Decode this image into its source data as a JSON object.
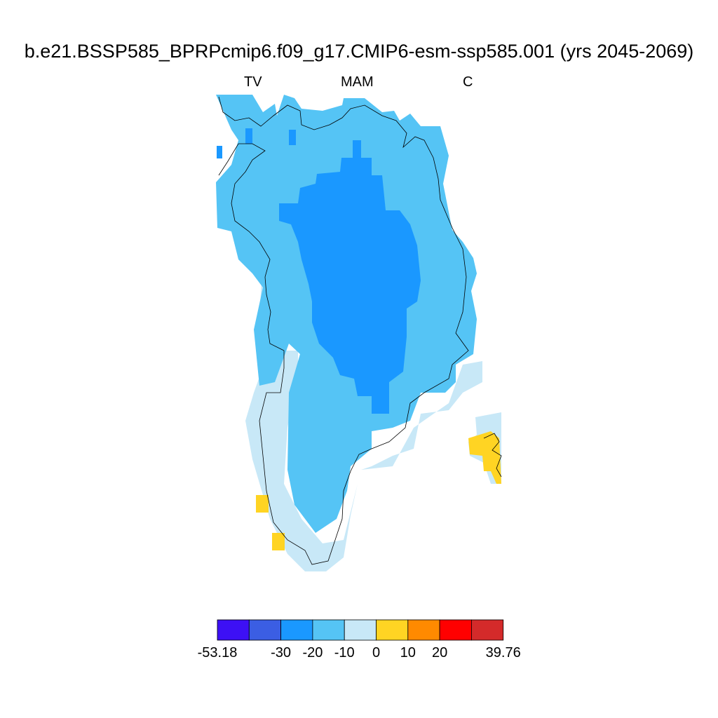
{
  "title": "b.e21.BSSP585_BPRPcmip6.f09_g17.CMIP6-esm-ssp585.001 (yrs 2045-2069)",
  "subtitles": {
    "left": "TV",
    "center": "MAM",
    "right": "C"
  },
  "colorbar": {
    "colors": [
      "#3d10f5",
      "#3b5ee3",
      "#1a98ff",
      "#55c4f5",
      "#c8e8f7",
      "#ffd423",
      "#ff8a00",
      "#ff0000",
      "#d42a2a"
    ],
    "labels": [
      "-53.18",
      "-30",
      "-20",
      "-10",
      "0",
      "10",
      "20",
      "39.76"
    ]
  },
  "map_colors": {
    "outline": "#000000"
  }
}
